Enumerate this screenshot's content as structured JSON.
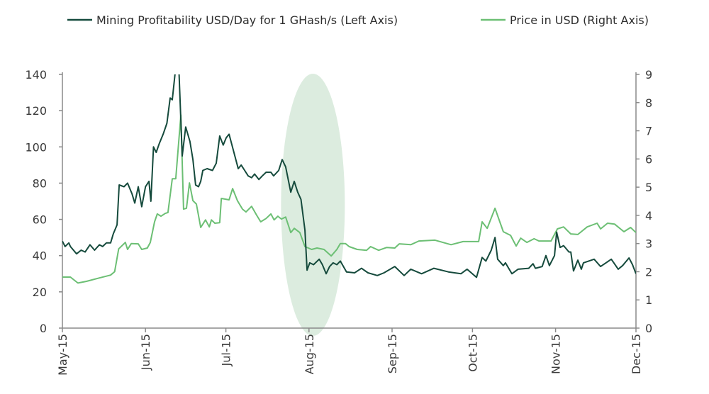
{
  "chart_data": {
    "type": "line",
    "title": "",
    "legend_position": "top",
    "x_ticks": [
      "May-15",
      "Jun-15",
      "Jul-15",
      "Aug-15",
      "Sep-15",
      "Oct-15",
      "Nov-15",
      "Dec-15"
    ],
    "x_tick_days": [
      0,
      31,
      61,
      92,
      123,
      153,
      184,
      214
    ],
    "x_range_days": [
      0,
      214
    ],
    "y_left": {
      "range": [
        0,
        140
      ],
      "ticks": [
        "0",
        "20",
        "40",
        "60",
        "80",
        "100",
        "120",
        "140"
      ]
    },
    "y_right": {
      "range": [
        0,
        9
      ],
      "ticks": [
        "0",
        "1",
        "2",
        "3",
        "4",
        "5",
        "6",
        "7",
        "8",
        "9"
      ]
    },
    "highlight": {
      "type": "ellipse",
      "center_day": 94,
      "color": "#dcecdf"
    },
    "series": [
      {
        "name": "Mining Profitability USD/Day for 1 GHash/s (Left Axis)",
        "axis": "left",
        "color": "#154a3c",
        "points": [
          [
            0,
            48
          ],
          [
            1,
            45
          ],
          [
            2.4,
            47
          ],
          [
            3,
            45
          ],
          [
            5.3,
            41
          ],
          [
            7,
            43
          ],
          [
            8.5,
            42
          ],
          [
            10.3,
            46
          ],
          [
            12,
            43
          ],
          [
            13.8,
            46
          ],
          [
            15,
            45
          ],
          [
            16.4,
            47
          ],
          [
            18,
            47
          ],
          [
            19,
            52
          ],
          [
            20.4,
            57
          ],
          [
            21.2,
            79
          ],
          [
            23,
            78
          ],
          [
            24.3,
            80
          ],
          [
            26,
            74
          ],
          [
            27,
            69
          ],
          [
            28.3,
            78
          ],
          [
            29.6,
            67
          ],
          [
            31,
            78
          ],
          [
            32.3,
            81
          ],
          [
            33,
            70
          ],
          [
            34,
            100
          ],
          [
            35,
            97
          ],
          [
            36.2,
            102
          ],
          [
            37.6,
            107
          ],
          [
            39,
            113
          ],
          [
            40.2,
            127
          ],
          [
            41,
            126
          ],
          [
            42,
            140
          ],
          [
            43.4,
            145
          ],
          [
            44.7,
            95
          ],
          [
            46,
            111
          ],
          [
            47.6,
            103
          ],
          [
            48.7,
            93
          ],
          [
            49.7,
            79
          ],
          [
            50.8,
            78
          ],
          [
            51.6,
            81
          ],
          [
            52.4,
            87
          ],
          [
            54,
            88
          ],
          [
            56,
            87
          ],
          [
            57.4,
            91
          ],
          [
            58.7,
            106
          ],
          [
            60,
            101
          ],
          [
            61.1,
            105
          ],
          [
            62.2,
            107
          ],
          [
            64,
            97
          ],
          [
            65.6,
            88
          ],
          [
            66.7,
            90
          ],
          [
            68,
            87
          ],
          [
            69.3,
            84
          ],
          [
            70.6,
            83
          ],
          [
            71.7,
            85
          ],
          [
            73.3,
            82
          ],
          [
            74.6,
            84
          ],
          [
            76,
            86
          ],
          [
            77.8,
            86
          ],
          [
            78.8,
            84
          ],
          [
            80.7,
            87
          ],
          [
            82,
            93
          ],
          [
            83.3,
            89
          ],
          [
            85.2,
            75
          ],
          [
            86.5,
            81
          ],
          [
            87.8,
            75
          ],
          [
            89,
            71
          ],
          [
            90.5,
            54
          ],
          [
            91.3,
            32
          ],
          [
            92.3,
            36
          ],
          [
            93.7,
            35
          ],
          [
            95.8,
            38
          ],
          [
            97,
            35
          ],
          [
            98.4,
            30
          ],
          [
            99.7,
            34
          ],
          [
            101,
            36
          ],
          [
            102.4,
            35
          ],
          [
            103.7,
            37
          ],
          [
            106,
            31
          ],
          [
            109,
            30.5
          ],
          [
            111.6,
            33
          ],
          [
            114,
            30.5
          ],
          [
            117.5,
            29
          ],
          [
            120,
            30.5
          ],
          [
            124,
            34
          ],
          [
            127.5,
            29
          ],
          [
            130,
            32.5
          ],
          [
            134,
            30
          ],
          [
            138.6,
            33
          ],
          [
            144,
            31
          ],
          [
            148.7,
            30
          ],
          [
            151,
            32.5
          ],
          [
            154.5,
            28
          ],
          [
            156.6,
            39
          ],
          [
            158,
            37
          ],
          [
            160,
            43
          ],
          [
            161.4,
            50
          ],
          [
            162.4,
            38
          ],
          [
            164.5,
            34.5
          ],
          [
            165.3,
            36
          ],
          [
            167.7,
            30
          ],
          [
            170,
            32.5
          ],
          [
            174,
            33
          ],
          [
            175.6,
            35.5
          ],
          [
            176.5,
            33
          ],
          [
            179,
            34
          ],
          [
            180.4,
            40
          ],
          [
            181.7,
            34.5
          ],
          [
            183.6,
            40
          ],
          [
            184.4,
            53
          ],
          [
            185.7,
            44.5
          ],
          [
            187,
            45.5
          ],
          [
            189,
            42
          ],
          [
            189.7,
            42
          ],
          [
            190.7,
            31.5
          ],
          [
            192.3,
            37.5
          ],
          [
            193.6,
            32.5
          ],
          [
            194.4,
            36
          ],
          [
            198.4,
            38
          ],
          [
            200.8,
            34
          ],
          [
            204.8,
            38
          ],
          [
            207.4,
            32.5
          ],
          [
            209,
            34.5
          ],
          [
            211.4,
            38.7
          ],
          [
            212.7,
            35
          ],
          [
            214,
            30
          ]
        ]
      },
      {
        "name": "Price in USD (Right Axis)",
        "axis": "right",
        "color": "#6cbf74",
        "points": [
          [
            0,
            1.81
          ],
          [
            3,
            1.81
          ],
          [
            5.8,
            1.6
          ],
          [
            9,
            1.66
          ],
          [
            13.8,
            1.78
          ],
          [
            18,
            1.88
          ],
          [
            19.5,
            2.0
          ],
          [
            21,
            2.81
          ],
          [
            23.5,
            3.04
          ],
          [
            24.3,
            2.79
          ],
          [
            25.7,
            3.0
          ],
          [
            28.3,
            2.99
          ],
          [
            29.6,
            2.79
          ],
          [
            31.7,
            2.84
          ],
          [
            32.8,
            3.04
          ],
          [
            34.4,
            3.77
          ],
          [
            35.4,
            4.05
          ],
          [
            36.8,
            3.97
          ],
          [
            38.4,
            4.07
          ],
          [
            39.4,
            4.1
          ],
          [
            41,
            5.3
          ],
          [
            42.3,
            5.3
          ],
          [
            44.2,
            7.56
          ],
          [
            45.2,
            4.22
          ],
          [
            46.3,
            4.25
          ],
          [
            47.4,
            5.15
          ],
          [
            48.7,
            4.52
          ],
          [
            50,
            4.4
          ],
          [
            51.6,
            3.57
          ],
          [
            53.4,
            3.84
          ],
          [
            54.8,
            3.59
          ],
          [
            55.6,
            3.84
          ],
          [
            56.9,
            3.72
          ],
          [
            58.7,
            3.74
          ],
          [
            59.3,
            4.6
          ],
          [
            62.2,
            4.55
          ],
          [
            63.5,
            4.95
          ],
          [
            65.3,
            4.52
          ],
          [
            67.2,
            4.22
          ],
          [
            68.5,
            4.12
          ],
          [
            70.6,
            4.32
          ],
          [
            72.5,
            4.0
          ],
          [
            74,
            3.77
          ],
          [
            76,
            3.89
          ],
          [
            77.8,
            4.05
          ],
          [
            79,
            3.84
          ],
          [
            80.4,
            3.97
          ],
          [
            81.7,
            3.87
          ],
          [
            83.3,
            3.94
          ],
          [
            85.2,
            3.39
          ],
          [
            86.5,
            3.54
          ],
          [
            88.6,
            3.39
          ],
          [
            90.5,
            2.89
          ],
          [
            93,
            2.79
          ],
          [
            95,
            2.84
          ],
          [
            97.6,
            2.79
          ],
          [
            100.3,
            2.56
          ],
          [
            102.4,
            2.79
          ],
          [
            103.7,
            3.0
          ],
          [
            105.6,
            3.0
          ],
          [
            107,
            2.89
          ],
          [
            110,
            2.79
          ],
          [
            113.5,
            2.76
          ],
          [
            115,
            2.89
          ],
          [
            118,
            2.76
          ],
          [
            121,
            2.86
          ],
          [
            124,
            2.84
          ],
          [
            125.7,
            2.99
          ],
          [
            130,
            2.96
          ],
          [
            133,
            3.09
          ],
          [
            139,
            3.12
          ],
          [
            145,
            2.96
          ],
          [
            149.5,
            3.07
          ],
          [
            155.3,
            3.07
          ],
          [
            156.6,
            3.77
          ],
          [
            158.5,
            3.54
          ],
          [
            161.4,
            4.25
          ],
          [
            164.5,
            3.42
          ],
          [
            167.2,
            3.29
          ],
          [
            169.3,
            2.91
          ],
          [
            171,
            3.19
          ],
          [
            173.3,
            3.04
          ],
          [
            176,
            3.17
          ],
          [
            177.8,
            3.09
          ],
          [
            182.3,
            3.09
          ],
          [
            184.7,
            3.52
          ],
          [
            187,
            3.59
          ],
          [
            189.7,
            3.34
          ],
          [
            192.3,
            3.32
          ],
          [
            195.8,
            3.59
          ],
          [
            199.5,
            3.72
          ],
          [
            200.8,
            3.52
          ],
          [
            203.4,
            3.72
          ],
          [
            206,
            3.69
          ],
          [
            209.5,
            3.42
          ],
          [
            212,
            3.57
          ],
          [
            214,
            3.39
          ]
        ]
      }
    ]
  }
}
